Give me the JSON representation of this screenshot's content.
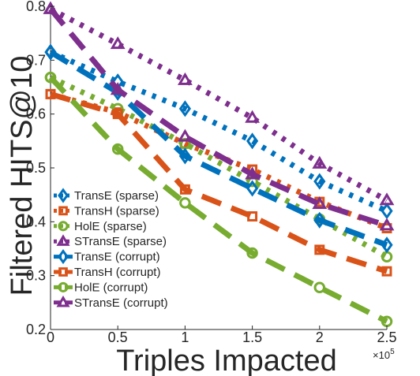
{
  "chart_data": {
    "type": "line",
    "title": "",
    "xlabel": "Triples Impacted",
    "ylabel": "Filtered HITS@10",
    "x_exponent_label": "×10",
    "x_exponent_power": "5",
    "xlim": [
      0,
      2.5
    ],
    "ylim": [
      0.2,
      0.8
    ],
    "x": [
      0,
      0.5,
      1,
      1.5,
      2,
      2.5
    ],
    "xticks": [
      "0",
      "0.5",
      "1",
      "1.5",
      "2",
      "2.5"
    ],
    "yticks": [
      "0.2",
      "0.3",
      "0.4",
      "0.5",
      "0.6",
      "0.7",
      "0.8"
    ],
    "legend_position": "bottom-left",
    "grid": false,
    "series": [
      {
        "name": "TransE (sparse)",
        "color": "#0072BD",
        "marker": "diamond",
        "style": "dotted",
        "values": [
          0.715,
          0.66,
          0.61,
          0.55,
          0.475,
          0.42
        ]
      },
      {
        "name": "TransH (sparse)",
        "color": "#D95319",
        "marker": "square",
        "style": "dotted",
        "values": [
          0.637,
          0.603,
          0.545,
          0.497,
          0.437,
          0.388
        ]
      },
      {
        "name": "HolE (sparse)",
        "color": "#77AC30",
        "marker": "circle",
        "style": "dotted",
        "values": [
          0.668,
          0.61,
          0.545,
          0.475,
          0.405,
          0.335
        ]
      },
      {
        "name": "STransE (sparse)",
        "color": "#7E2F8E",
        "marker": "triangle",
        "style": "dotted",
        "values": [
          0.795,
          0.73,
          0.663,
          0.593,
          0.508,
          0.44
        ]
      },
      {
        "name": "TransE (corrupt)",
        "color": "#0072BD",
        "marker": "diamond",
        "style": "dashed",
        "values": [
          0.715,
          0.64,
          0.522,
          0.462,
          0.403,
          0.357
        ]
      },
      {
        "name": "TransH (corrupt)",
        "color": "#D95319",
        "marker": "square",
        "style": "dashed",
        "values": [
          0.637,
          0.6,
          0.46,
          0.41,
          0.348,
          0.308
        ]
      },
      {
        "name": "HolE (corrupt)",
        "color": "#77AC30",
        "marker": "circle",
        "style": "dashed",
        "values": [
          0.668,
          0.535,
          0.435,
          0.342,
          0.278,
          0.215
        ]
      },
      {
        "name": "STransE (corrupt)",
        "color": "#7E2F8E",
        "marker": "triangle",
        "style": "dashed",
        "values": [
          0.795,
          0.645,
          0.558,
          0.488,
          0.433,
          0.393
        ]
      }
    ]
  }
}
